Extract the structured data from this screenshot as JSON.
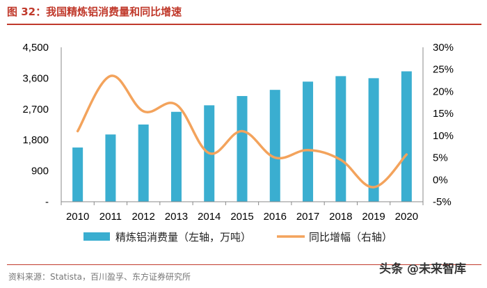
{
  "title": "图 32：我国精炼铝消费量和同比增速",
  "source": "资料来源：Statista，百川盈孚、东方证券研究所",
  "watermark": "头条 @未来智库",
  "colors": {
    "bar": "#3aaed0",
    "line": "#f3a35c",
    "title": "#c0392b"
  },
  "chart_data": {
    "type": "bar+line",
    "categories": [
      "2010",
      "2011",
      "2012",
      "2013",
      "2014",
      "2015",
      "2016",
      "2017",
      "2018",
      "2019",
      "2020"
    ],
    "series": [
      {
        "name": "精炼铝消费量（左轴，万吨）",
        "axis": "left",
        "type": "bar",
        "values": [
          1580,
          1960,
          2250,
          2620,
          2810,
          3080,
          3260,
          3500,
          3660,
          3600,
          3800
        ]
      },
      {
        "name": "同比增幅（右轴）",
        "axis": "right",
        "type": "line",
        "unit": "%",
        "values": [
          11,
          23.5,
          15.5,
          17,
          6,
          11,
          5,
          6.7,
          4.5,
          -1.7,
          5.7
        ]
      }
    ],
    "y_left": {
      "ticks": [
        "-",
        "900",
        "1,800",
        "2,700",
        "3,600",
        "4,500"
      ],
      "ylim": [
        0,
        4500
      ]
    },
    "y_right": {
      "ticks": [
        "-5%",
        "0%",
        "5%",
        "10%",
        "15%",
        "20%",
        "25%",
        "30%"
      ],
      "ylim": [
        -5,
        30
      ]
    }
  }
}
